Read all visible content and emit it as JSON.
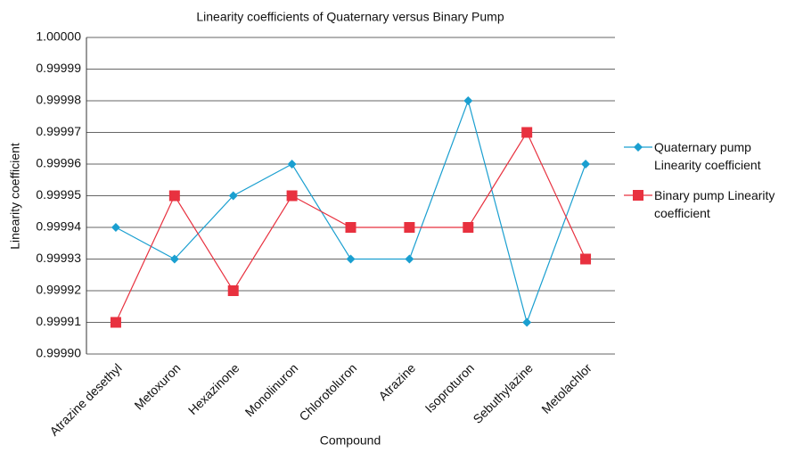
{
  "chart_data": {
    "type": "line",
    "title": "Linearity coefficients of Quaternary versus Binary Pump",
    "x_label": "Compound",
    "y_label": "Linearity coefficient",
    "categories": [
      "Atrazine desethyl",
      "Metoxuron",
      "Hexazinone",
      "Monolinuron",
      "Chlorotoluron",
      "Atrazine",
      "Isoproturon",
      "Sebuthylazine",
      "Metolachlor"
    ],
    "series": [
      {
        "name": "Quaternary pump Linearity coefficient",
        "color": "#1a9fd0",
        "marker": "diamond",
        "values": [
          0.99994,
          0.99993,
          0.99995,
          0.99996,
          0.99993,
          0.99993,
          0.99998,
          0.99991,
          0.99996
        ]
      },
      {
        "name": "Binary pump Linearity coefficient",
        "color": "#e8313f",
        "marker": "square",
        "values": [
          0.99991,
          0.99995,
          0.99992,
          0.99995,
          0.99994,
          0.99994,
          0.99994,
          0.99997,
          0.99993
        ]
      }
    ],
    "ylim": [
      0.9999,
      1
    ],
    "yticks": [
      {
        "value": 0.9999,
        "label": "0.99990"
      },
      0.99991,
      0.99992,
      0.99993,
      0.99994,
      0.99995,
      0.99996,
      0.99997,
      0.99998,
      0.99999,
      {
        "value": 1,
        "label": "1.00000"
      }
    ],
    "grid": true,
    "legend": "right"
  }
}
